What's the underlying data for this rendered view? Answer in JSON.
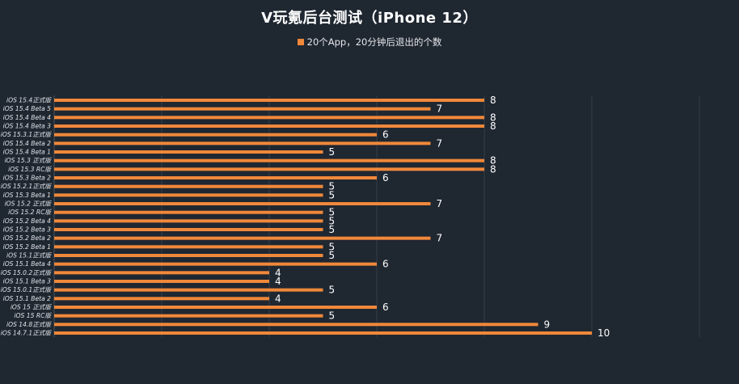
{
  "chart_data": {
    "type": "bar",
    "orientation": "horizontal",
    "title": "V玩氪后台测试（iPhone 12）",
    "legend_position": "top",
    "grid": true,
    "xlim": [
      0,
      12
    ],
    "categories": [
      "iOS 15.4正式版",
      "iOS 15.4 Beta 5",
      "iOS 15.4 Beta 4",
      "iOS 15.4 Beta 3",
      "iOS 15.3.1正式版",
      "iOS 15.4 Beta 2",
      "iOS 15.4 Beta 1",
      "iOS 15.3 正式版",
      "iOS 15.3 RC版",
      "iOS 15.3 Beta 2",
      "iOS 15.2.1正式版",
      "iOS 15.3 Beta 1",
      "iOS 15.2 正式版",
      "iOS 15.2 RC版",
      "iOS 15.2 Beta 4",
      "iOS 15.2 Beta 3",
      "iOS 15.2 Beta 2",
      "iOS 15.2 Beta 1",
      "iOS 15.1正式版",
      "iOS 15.1 Beta 4",
      "iOS 15.0.2正式版",
      "iOS 15.1 Beta 3",
      "iOS 15.0.1正式版",
      "iOS 15.1 Beta 2",
      "iOS 15 正式版",
      "iOS 15 RC版",
      "iOS 14.8正式版",
      "iOS 14.7.1正式版"
    ],
    "series": [
      {
        "name": "20个App，20分钟后退出的个数",
        "color": "#f0883a",
        "values": [
          8,
          7,
          8,
          8,
          6,
          7,
          5,
          8,
          8,
          6,
          5,
          5,
          7,
          5,
          5,
          5,
          7,
          5,
          5,
          6,
          4,
          4,
          5,
          4,
          6,
          5,
          9,
          10
        ]
      }
    ]
  }
}
